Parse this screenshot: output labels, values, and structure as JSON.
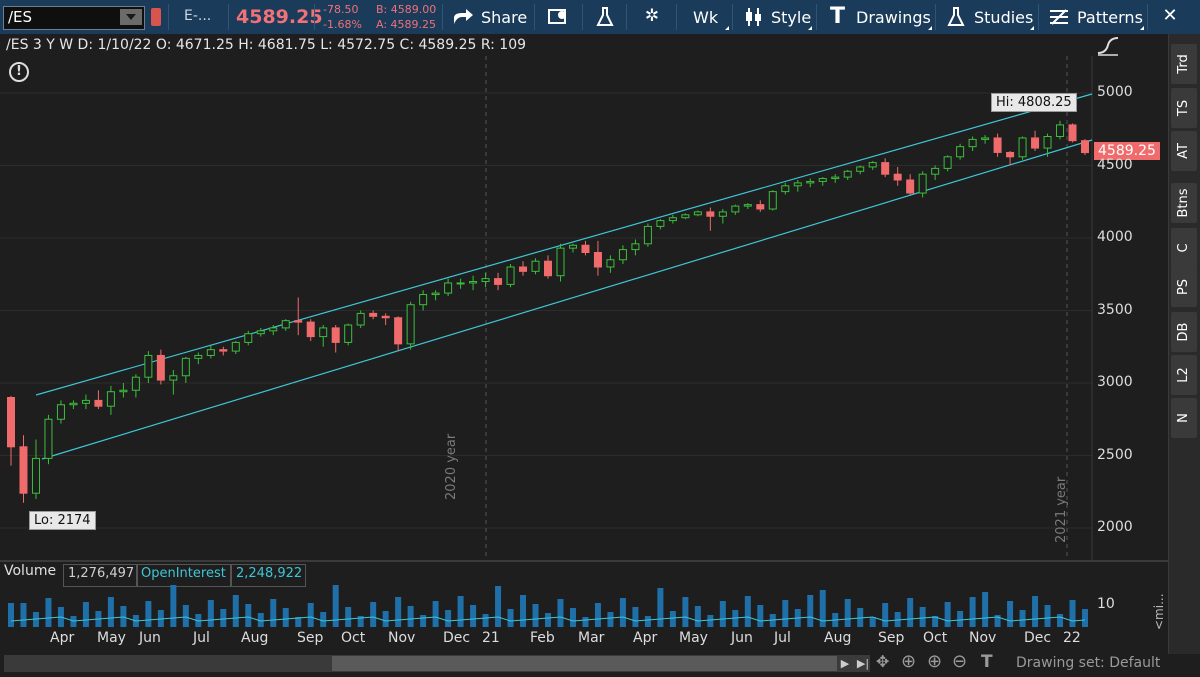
{
  "toolbar": {
    "symbol": "/ES",
    "description": "E-...",
    "last": "4589.25",
    "change": "-78.50",
    "change_pct": "-1.68%",
    "bid": "B: 4589.00",
    "ask": "A: 4589.25",
    "share": "Share",
    "aggregation": "Wk",
    "style": "Style",
    "drawings": "Drawings",
    "studies": "Studies",
    "patterns": "Patterns"
  },
  "info": {
    "text": "/ES 3 Y W  D: 1/10/22  O: 4671.25  H: 4681.75  L: 4572.75  C: 4589.25  R: 109"
  },
  "chart": {
    "hi_label": "Hi: 4808.25",
    "lo_label": "Lo: 2174",
    "last_label": "4589.25",
    "y_ticks": [
      "5000",
      "4500",
      "4000",
      "3500",
      "3000",
      "2500",
      "2000"
    ],
    "year_markers": [
      "2020 year",
      "2021 year"
    ],
    "months": [
      "Apr",
      "May",
      "Jun",
      "Jul",
      "Aug",
      "Sep",
      "Oct",
      "Nov",
      "Dec",
      "21",
      "Feb",
      "Mar",
      "Apr",
      "May",
      "Jun",
      "Jul",
      "Aug",
      "Sep",
      "Oct",
      "Nov",
      "Dec",
      "22"
    ],
    "up_color": "#3bbf3b",
    "down_color": "#f06b6b",
    "channel_color": "#3ec6d6"
  },
  "chart_data": {
    "type": "candlestick",
    "series": [
      {
        "name": "/ES",
        "values": [
          [
            2900,
            2910,
            2430,
            2560
          ],
          [
            2560,
            2640,
            2174,
            2240
          ],
          [
            2240,
            2610,
            2200,
            2480
          ],
          [
            2480,
            2780,
            2440,
            2750
          ],
          [
            2750,
            2880,
            2720,
            2850
          ],
          [
            2850,
            2880,
            2820,
            2860
          ],
          [
            2860,
            2920,
            2820,
            2880
          ],
          [
            2880,
            2950,
            2820,
            2840
          ],
          [
            2840,
            2980,
            2780,
            2940
          ],
          [
            2940,
            3000,
            2900,
            2950
          ],
          [
            2950,
            3060,
            2900,
            3040
          ],
          [
            3040,
            3220,
            3000,
            3190
          ],
          [
            3190,
            3230,
            2990,
            3020
          ],
          [
            3020,
            3090,
            2920,
            3050
          ],
          [
            3050,
            3180,
            3000,
            3170
          ],
          [
            3170,
            3210,
            3130,
            3190
          ],
          [
            3190,
            3260,
            3170,
            3230
          ],
          [
            3230,
            3250,
            3190,
            3220
          ],
          [
            3220,
            3290,
            3200,
            3280
          ],
          [
            3280,
            3360,
            3260,
            3340
          ],
          [
            3340,
            3380,
            3320,
            3360
          ],
          [
            3360,
            3400,
            3330,
            3380
          ],
          [
            3380,
            3440,
            3360,
            3430
          ],
          [
            3430,
            3590,
            3330,
            3420
          ],
          [
            3420,
            3440,
            3290,
            3320
          ],
          [
            3320,
            3400,
            3250,
            3380
          ],
          [
            3380,
            3400,
            3210,
            3280
          ],
          [
            3280,
            3410,
            3260,
            3400
          ],
          [
            3400,
            3500,
            3380,
            3480
          ],
          [
            3480,
            3500,
            3440,
            3460
          ],
          [
            3460,
            3480,
            3400,
            3450
          ],
          [
            3450,
            3460,
            3220,
            3270
          ],
          [
            3270,
            3560,
            3230,
            3540
          ],
          [
            3540,
            3640,
            3500,
            3610
          ],
          [
            3610,
            3640,
            3570,
            3620
          ],
          [
            3620,
            3720,
            3600,
            3690
          ],
          [
            3690,
            3720,
            3650,
            3690
          ],
          [
            3690,
            3740,
            3640,
            3700
          ],
          [
            3700,
            3760,
            3660,
            3720
          ],
          [
            3720,
            3760,
            3640,
            3680
          ],
          [
            3680,
            3820,
            3660,
            3800
          ],
          [
            3800,
            3840,
            3740,
            3770
          ],
          [
            3770,
            3860,
            3750,
            3840
          ],
          [
            3840,
            3880,
            3720,
            3740
          ],
          [
            3740,
            3960,
            3700,
            3930
          ],
          [
            3930,
            3960,
            3900,
            3950
          ],
          [
            3950,
            3980,
            3880,
            3900
          ],
          [
            3900,
            3980,
            3740,
            3800
          ],
          [
            3800,
            3880,
            3760,
            3850
          ],
          [
            3850,
            3950,
            3820,
            3920
          ],
          [
            3920,
            3990,
            3880,
            3960
          ],
          [
            3960,
            4100,
            3940,
            4080
          ],
          [
            4080,
            4130,
            4060,
            4120
          ],
          [
            4120,
            4160,
            4100,
            4140
          ],
          [
            4140,
            4170,
            4130,
            4160
          ],
          [
            4160,
            4190,
            4150,
            4180
          ],
          [
            4180,
            4210,
            4050,
            4150
          ],
          [
            4150,
            4200,
            4100,
            4180
          ],
          [
            4180,
            4230,
            4160,
            4220
          ],
          [
            4220,
            4240,
            4200,
            4230
          ],
          [
            4230,
            4260,
            4180,
            4200
          ],
          [
            4200,
            4330,
            4190,
            4320
          ],
          [
            4320,
            4380,
            4300,
            4360
          ],
          [
            4360,
            4400,
            4320,
            4380
          ],
          [
            4380,
            4410,
            4350,
            4390
          ],
          [
            4390,
            4420,
            4360,
            4410
          ],
          [
            4410,
            4440,
            4380,
            4420
          ],
          [
            4420,
            4470,
            4400,
            4460
          ],
          [
            4460,
            4500,
            4440,
            4490
          ],
          [
            4490,
            4530,
            4470,
            4520
          ],
          [
            4520,
            4550,
            4420,
            4440
          ],
          [
            4440,
            4490,
            4360,
            4400
          ],
          [
            4400,
            4440,
            4300,
            4310
          ],
          [
            4310,
            4460,
            4280,
            4440
          ],
          [
            4440,
            4500,
            4400,
            4480
          ],
          [
            4480,
            4570,
            4460,
            4560
          ],
          [
            4560,
            4650,
            4540,
            4630
          ],
          [
            4630,
            4700,
            4600,
            4680
          ],
          [
            4680,
            4710,
            4650,
            4690
          ],
          [
            4690,
            4720,
            4560,
            4590
          ],
          [
            4590,
            4600,
            4500,
            4560
          ],
          [
            4560,
            4700,
            4540,
            4690
          ],
          [
            4690,
            4740,
            4600,
            4620
          ],
          [
            4620,
            4720,
            4560,
            4700
          ],
          [
            4700,
            4808.25,
            4680,
            4780
          ],
          [
            4780,
            4790,
            4660,
            4671.25
          ],
          [
            4671.25,
            4681.75,
            4572.75,
            4589.25
          ]
        ]
      }
    ],
    "ylim": [
      1900,
      5150
    ],
    "hi": 4808.25,
    "lo": 2174,
    "last": 4589.25,
    "volume": "1,276,497",
    "open_interest": "2,248,922",
    "volume_axis_tick": "10"
  },
  "lower": {
    "volume_label": "Volume",
    "volume_value": "1,276,497",
    "oi_label": "OpenInterest",
    "oi_value": "2,248,922",
    "tick": "10",
    "collapsed": "<mi..."
  },
  "sidebar": [
    "Trd",
    "TS",
    "AT",
    "Btns",
    "C",
    "PS",
    "DB",
    "L2",
    "N"
  ],
  "footer": {
    "drawing_set": "Drawing set: Default"
  }
}
